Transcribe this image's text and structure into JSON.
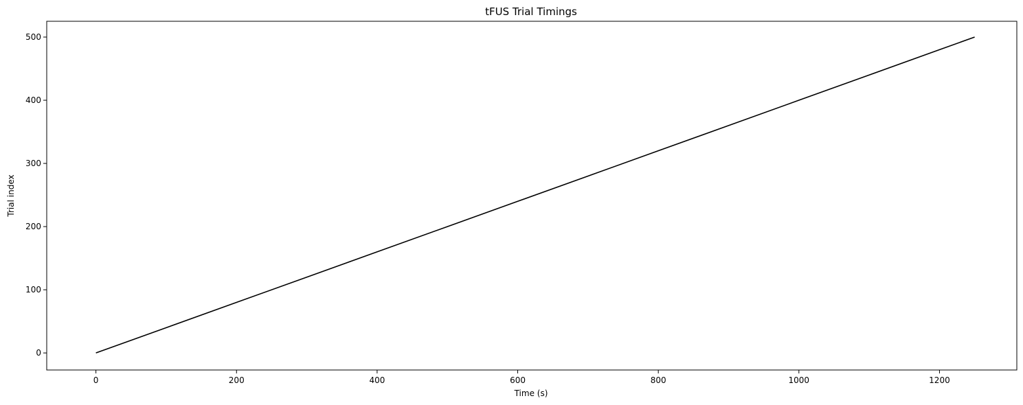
{
  "chart_data": {
    "type": "line",
    "title": "tFUS Trial Timings",
    "xlabel": "Time (s)",
    "ylabel": "Trial index",
    "xlim": [
      -70,
      1310
    ],
    "ylim": [
      -27,
      525
    ],
    "xticks": [
      0,
      200,
      400,
      600,
      800,
      1000,
      1200
    ],
    "yticks": [
      0,
      100,
      200,
      300,
      400,
      500
    ],
    "xtick_labels": [
      "0",
      "200",
      "400",
      "600",
      "800",
      "1000",
      "1200"
    ],
    "ytick_labels": [
      "0",
      "100",
      "200",
      "300",
      "400",
      "500"
    ],
    "grid": false,
    "legend": "none",
    "series": [
      {
        "color": "#000000",
        "x": [
          0,
          100,
          200,
          300,
          400,
          500,
          600,
          700,
          800,
          900,
          1000,
          1100,
          1200,
          1250
        ],
        "y": [
          0,
          40,
          80,
          120,
          160,
          200,
          240,
          280,
          320,
          360,
          400,
          440,
          480,
          500
        ]
      }
    ]
  }
}
